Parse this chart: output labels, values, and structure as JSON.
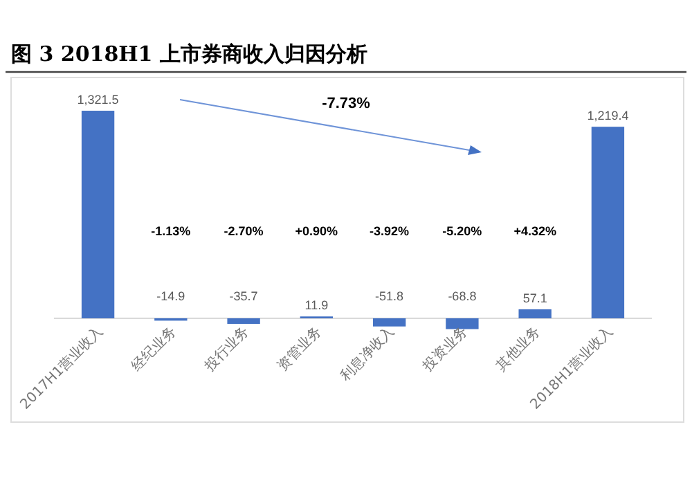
{
  "chart_data": {
    "type": "bar",
    "title": "图 3 2018H1 上市券商收入归因分析",
    "categories": [
      "2017H1营业收入",
      "经纪业务",
      "投行业务",
      "资管业务",
      "利息净收入",
      "投资业务",
      "其他业务",
      "2018H1营业收入"
    ],
    "values": [
      1321.5,
      -14.9,
      -35.7,
      11.9,
      -51.8,
      -68.8,
      57.1,
      1219.4
    ],
    "value_labels": [
      "1,321.5",
      "-14.9",
      "-35.7",
      "11.9",
      "-51.8",
      "-68.8",
      "57.1",
      "1,219.4"
    ],
    "color": "#4472c4",
    "annotations": [
      "-7.73%",
      "-1.13%",
      "-2.70%",
      "+0.90%",
      "-3.92%",
      "-5.20%",
      "+4.32%"
    ]
  }
}
